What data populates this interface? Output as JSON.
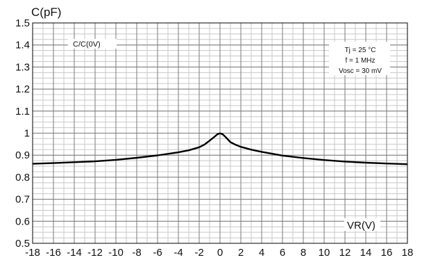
{
  "chart_data": {
    "type": "line",
    "title": "",
    "ylabel": "C(pF)",
    "xlabel": "VR(V)",
    "series_label": "C/C(0V)",
    "conditions": [
      "Tj = 25 °C",
      "f = 1 MHz",
      "Vosc = 30 mV"
    ],
    "xlim": [
      -18,
      18
    ],
    "ylim": [
      0.5,
      1.5
    ],
    "x_ticks": [
      "-18",
      "-16",
      "-14",
      "-12",
      "-10",
      "-8",
      "-6",
      "-4",
      "-2",
      "0",
      "2",
      "4",
      "6",
      "8",
      "10",
      "12",
      "14",
      "16",
      "18"
    ],
    "y_ticks": [
      "0.5",
      "0.6",
      "0.7",
      "0.8",
      "0.9",
      "1",
      "1.1",
      "1.2",
      "1.3",
      "1.4",
      "1.5"
    ],
    "grid": true,
    "series": [
      {
        "x": [
          -18,
          -16,
          -14,
          -12,
          -10,
          -8,
          -6,
          -4,
          -3,
          -2,
          -1.5,
          -1,
          -0.5,
          -0.25,
          0,
          0.25,
          0.5,
          1,
          1.5,
          2,
          3,
          4,
          6,
          8,
          10,
          12,
          14,
          16,
          18
        ],
        "y": [
          0.861,
          0.864,
          0.868,
          0.872,
          0.879,
          0.888,
          0.899,
          0.913,
          0.922,
          0.936,
          0.948,
          0.966,
          0.985,
          0.995,
          0.999,
          0.995,
          0.984,
          0.959,
          0.947,
          0.938,
          0.925,
          0.915,
          0.898,
          0.887,
          0.878,
          0.871,
          0.866,
          0.862,
          0.859
        ]
      }
    ]
  }
}
